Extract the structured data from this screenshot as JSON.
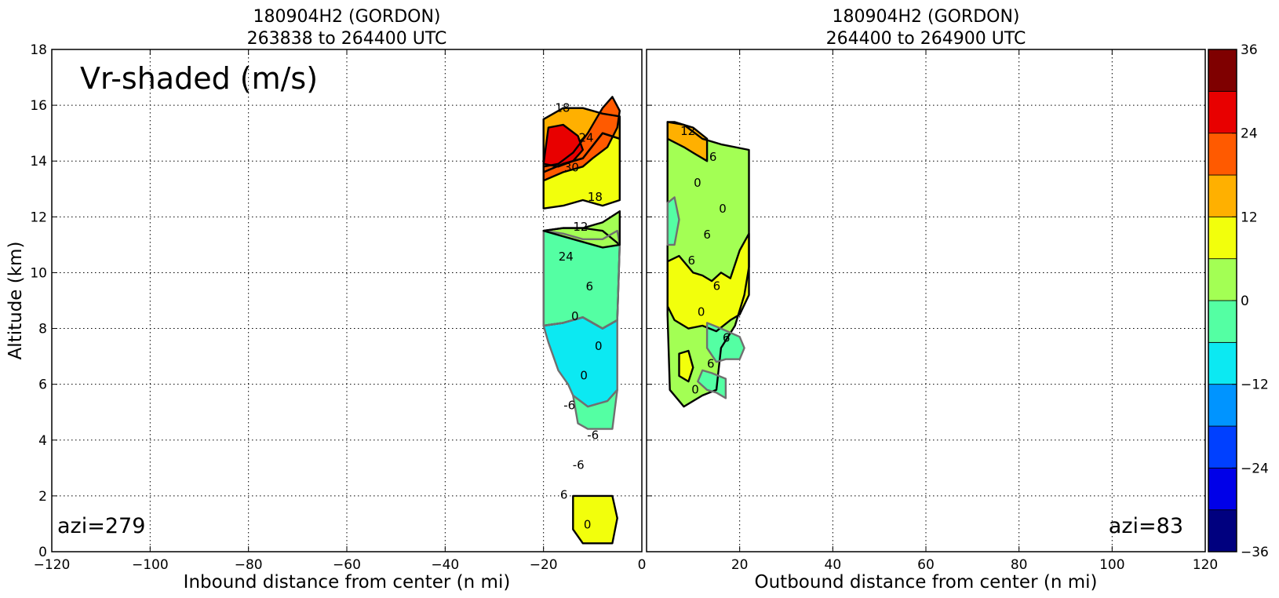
{
  "chart_data": {
    "type": "heatmap",
    "shared": {
      "ylabel": "Altitude (km)",
      "ylim": [
        0,
        18
      ],
      "yticks": [
        0,
        2,
        4,
        6,
        8,
        10,
        12,
        14,
        16,
        18
      ],
      "grid": true
    },
    "panels": [
      {
        "title_line1": "180904H2 (GORDON)",
        "title_line2": "263838 to 264400 UTC",
        "xlabel": "Inbound distance from center (n mi)",
        "xlim": [
          -120,
          0
        ],
        "xticks": [
          -120,
          -100,
          -80,
          -60,
          -40,
          -20,
          0
        ],
        "annotation": "Vr-shaded (m/s)",
        "azi_label": "azi=279",
        "contour_labels": [
          "18",
          "24",
          "30",
          "18",
          "12",
          "24",
          "6",
          "0",
          "0",
          "0",
          "-6",
          "-6",
          "-6",
          "6",
          "0"
        ],
        "regions": [
          {
            "value": 3,
            "points": [
              [
                -20,
                8.1
              ],
              [
                -16,
                8.2
              ],
              [
                -12,
                8.4
              ],
              [
                -8,
                8.0
              ],
              [
                -5,
                8.3
              ],
              [
                -4.5,
                11
              ],
              [
                -8,
                11.5
              ],
              [
                -12,
                11.6
              ],
              [
                -16,
                11.6
              ],
              [
                -20,
                11.5
              ]
            ]
          },
          {
            "value": -9,
            "points": [
              [
                -20,
                8.1
              ],
              [
                -16,
                8.2
              ],
              [
                -12,
                8.4
              ],
              [
                -8,
                8.0
              ],
              [
                -5,
                8.3
              ],
              [
                -5,
                5.8
              ],
              [
                -7,
                5.4
              ],
              [
                -11,
                5.2
              ],
              [
                -14,
                5.6
              ],
              [
                -15,
                6.0
              ],
              [
                -17,
                6.5
              ],
              [
                -19,
                7.5
              ]
            ]
          },
          {
            "value": -3,
            "points": [
              [
                -20,
                8.1
              ],
              [
                -16,
                8.2
              ],
              [
                -12,
                8.4
              ],
              [
                -8,
                8.0
              ],
              [
                -5,
                8.3
              ],
              [
                -4.5,
                11
              ],
              [
                -5,
                11.5
              ],
              [
                -8,
                11.2
              ],
              [
                -12,
                11.2
              ],
              [
                -16,
                11.4
              ],
              [
                -20,
                11.5
              ],
              [
                -20,
                9.0
              ]
            ]
          },
          {
            "value": -3,
            "points": [
              [
                -14,
                5.6
              ],
              [
                -11,
                5.2
              ],
              [
                -7,
                5.4
              ],
              [
                -5,
                5.8
              ],
              [
                -6,
                4.4
              ],
              [
                -11,
                4.4
              ],
              [
                -13,
                4.6
              ]
            ]
          },
          {
            "value": 3,
            "points": [
              [
                -20,
                11.5
              ],
              [
                -16,
                11.6
              ],
              [
                -12,
                11.6
              ],
              [
                -8,
                11.8
              ],
              [
                -4.5,
                12.2
              ],
              [
                -4.5,
                11
              ],
              [
                -8,
                10.9
              ],
              [
                -12,
                11.1
              ],
              [
                -16,
                11.3
              ]
            ]
          },
          {
            "value": 9,
            "points": [
              [
                -20,
                12.3
              ],
              [
                -16,
                12.4
              ],
              [
                -12,
                12.6
              ],
              [
                -8,
                12.4
              ],
              [
                -4.5,
                12.6
              ],
              [
                -4.5,
                14.8
              ],
              [
                -8,
                15.0
              ],
              [
                -12,
                14.1
              ],
              [
                -16,
                13.9
              ],
              [
                -20,
                13.6
              ]
            ]
          },
          {
            "value": 15,
            "points": [
              [
                -20,
                13.6
              ],
              [
                -16,
                13.9
              ],
              [
                -12,
                14.1
              ],
              [
                -8,
                15.0
              ],
              [
                -4.5,
                14.8
              ],
              [
                -4.5,
                15.6
              ],
              [
                -8,
                15.7
              ],
              [
                -12,
                15.9
              ],
              [
                -16,
                15.9
              ],
              [
                -20,
                15.5
              ]
            ]
          },
          {
            "value": 21,
            "points": [
              [
                -20,
                13.8
              ],
              [
                -17,
                13.9
              ],
              [
                -14,
                14.3
              ],
              [
                -11,
                15.0
              ],
              [
                -9,
                15.6
              ],
              [
                -8,
                15.9
              ],
              [
                -6,
                16.3
              ],
              [
                -4.5,
                15.8
              ],
              [
                -5,
                15.2
              ],
              [
                -7,
                14.5
              ],
              [
                -10,
                14.1
              ],
              [
                -12,
                13.8
              ],
              [
                -16,
                13.6
              ],
              [
                -20,
                13.3
              ]
            ]
          },
          {
            "value": 27,
            "points": [
              [
                -20,
                13.9
              ],
              [
                -19,
                15.2
              ],
              [
                -16,
                15.3
              ],
              [
                -13,
                14.9
              ],
              [
                -12,
                14.4
              ],
              [
                -14,
                14.0
              ],
              [
                -17,
                13.8
              ]
            ]
          },
          {
            "value": 9,
            "points": [
              [
                -14,
                2.0
              ],
              [
                -6,
                2.0
              ],
              [
                -5,
                1.2
              ],
              [
                -6,
                0.3
              ],
              [
                -12,
                0.3
              ],
              [
                -14,
                0.8
              ]
            ]
          }
        ]
      },
      {
        "title_line1": "180904H2 (GORDON)",
        "title_line2": "264400 to 264900 UTC",
        "xlabel": "Outbound distance from center (n mi)",
        "xlim": [
          0,
          120
        ],
        "xticks": [
          0,
          20,
          40,
          60,
          80,
          100,
          120
        ],
        "annotation": "",
        "azi_label": "azi=83",
        "contour_labels": [
          "12",
          "6",
          "0",
          "0",
          "6",
          "6",
          "6",
          "0",
          "6",
          "6",
          "0"
        ],
        "regions": [
          {
            "value": 3,
            "points": [
              [
                4.5,
                15.4
              ],
              [
                8,
                15.3
              ],
              [
                12,
                14.8
              ],
              [
                16,
                14.6
              ],
              [
                22,
                14.4
              ],
              [
                22,
                10.2
              ],
              [
                21,
                9.2
              ],
              [
                19,
                8.1
              ],
              [
                16,
                7.3
              ],
              [
                15,
                5.8
              ],
              [
                12,
                5.6
              ],
              [
                8,
                5.2
              ],
              [
                5,
                5.8
              ],
              [
                4.5,
                8.5
              ]
            ]
          },
          {
            "value": 9,
            "points": [
              [
                4.5,
                10.4
              ],
              [
                7,
                10.6
              ],
              [
                10,
                10.0
              ],
              [
                12,
                9.9
              ],
              [
                14,
                9.7
              ],
              [
                16,
                10.0
              ],
              [
                18,
                9.8
              ],
              [
                20,
                10.8
              ],
              [
                22,
                11.4
              ],
              [
                22,
                9.2
              ],
              [
                20,
                8.5
              ],
              [
                18,
                8.3
              ],
              [
                15,
                7.9
              ],
              [
                12,
                8.1
              ],
              [
                9,
                8.0
              ],
              [
                6,
                8.3
              ],
              [
                4.5,
                8.8
              ]
            ]
          },
          {
            "value": -3,
            "points": [
              [
                4.5,
                12.5
              ],
              [
                6,
                12.7
              ],
              [
                7,
                11.9
              ],
              [
                6,
                11.0
              ],
              [
                4.5,
                11.0
              ]
            ]
          },
          {
            "value": -3,
            "points": [
              [
                13,
                8.2
              ],
              [
                16,
                8.0
              ],
              [
                20,
                7.7
              ],
              [
                21,
                7.3
              ],
              [
                20,
                6.9
              ],
              [
                17,
                6.9
              ],
              [
                15,
                6.8
              ],
              [
                13,
                7.3
              ]
            ]
          },
          {
            "value": -3,
            "points": [
              [
                11,
                6.1
              ],
              [
                13,
                5.8
              ],
              [
                15,
                5.7
              ],
              [
                17,
                5.5
              ],
              [
                17,
                6.2
              ],
              [
                14,
                6.4
              ],
              [
                12,
                6.5
              ]
            ]
          },
          {
            "value": 15,
            "points": [
              [
                4.5,
                14.8
              ],
              [
                8,
                14.5
              ],
              [
                10,
                14.3
              ],
              [
                13,
                14.0
              ],
              [
                13,
                14.8
              ],
              [
                10,
                15.2
              ],
              [
                6,
                15.4
              ],
              [
                4.5,
                15.4
              ]
            ]
          },
          {
            "value": 9,
            "points": [
              [
                7,
                7.1
              ],
              [
                9,
                7.2
              ],
              [
                10,
                6.6
              ],
              [
                9,
                6.1
              ],
              [
                7,
                6.3
              ]
            ]
          }
        ]
      }
    ],
    "colorbar": {
      "levels": [
        -36,
        -30,
        -24,
        -18,
        -12,
        -6,
        0,
        6,
        12,
        18,
        24,
        30,
        36
      ],
      "colors": [
        "#00007f",
        "#0000e8",
        "#0040ff",
        "#0094ff",
        "#0ce9f2",
        "#54ffa3",
        "#a3ff54",
        "#f2ff0c",
        "#ffb000",
        "#ff5a00",
        "#e80000",
        "#7f0000"
      ],
      "tick_labels": [
        "36",
        "24",
        "12",
        "0",
        "−12",
        "−24",
        "−36"
      ],
      "tick_values": [
        36,
        24,
        12,
        0,
        -12,
        -24,
        -36
      ]
    }
  }
}
